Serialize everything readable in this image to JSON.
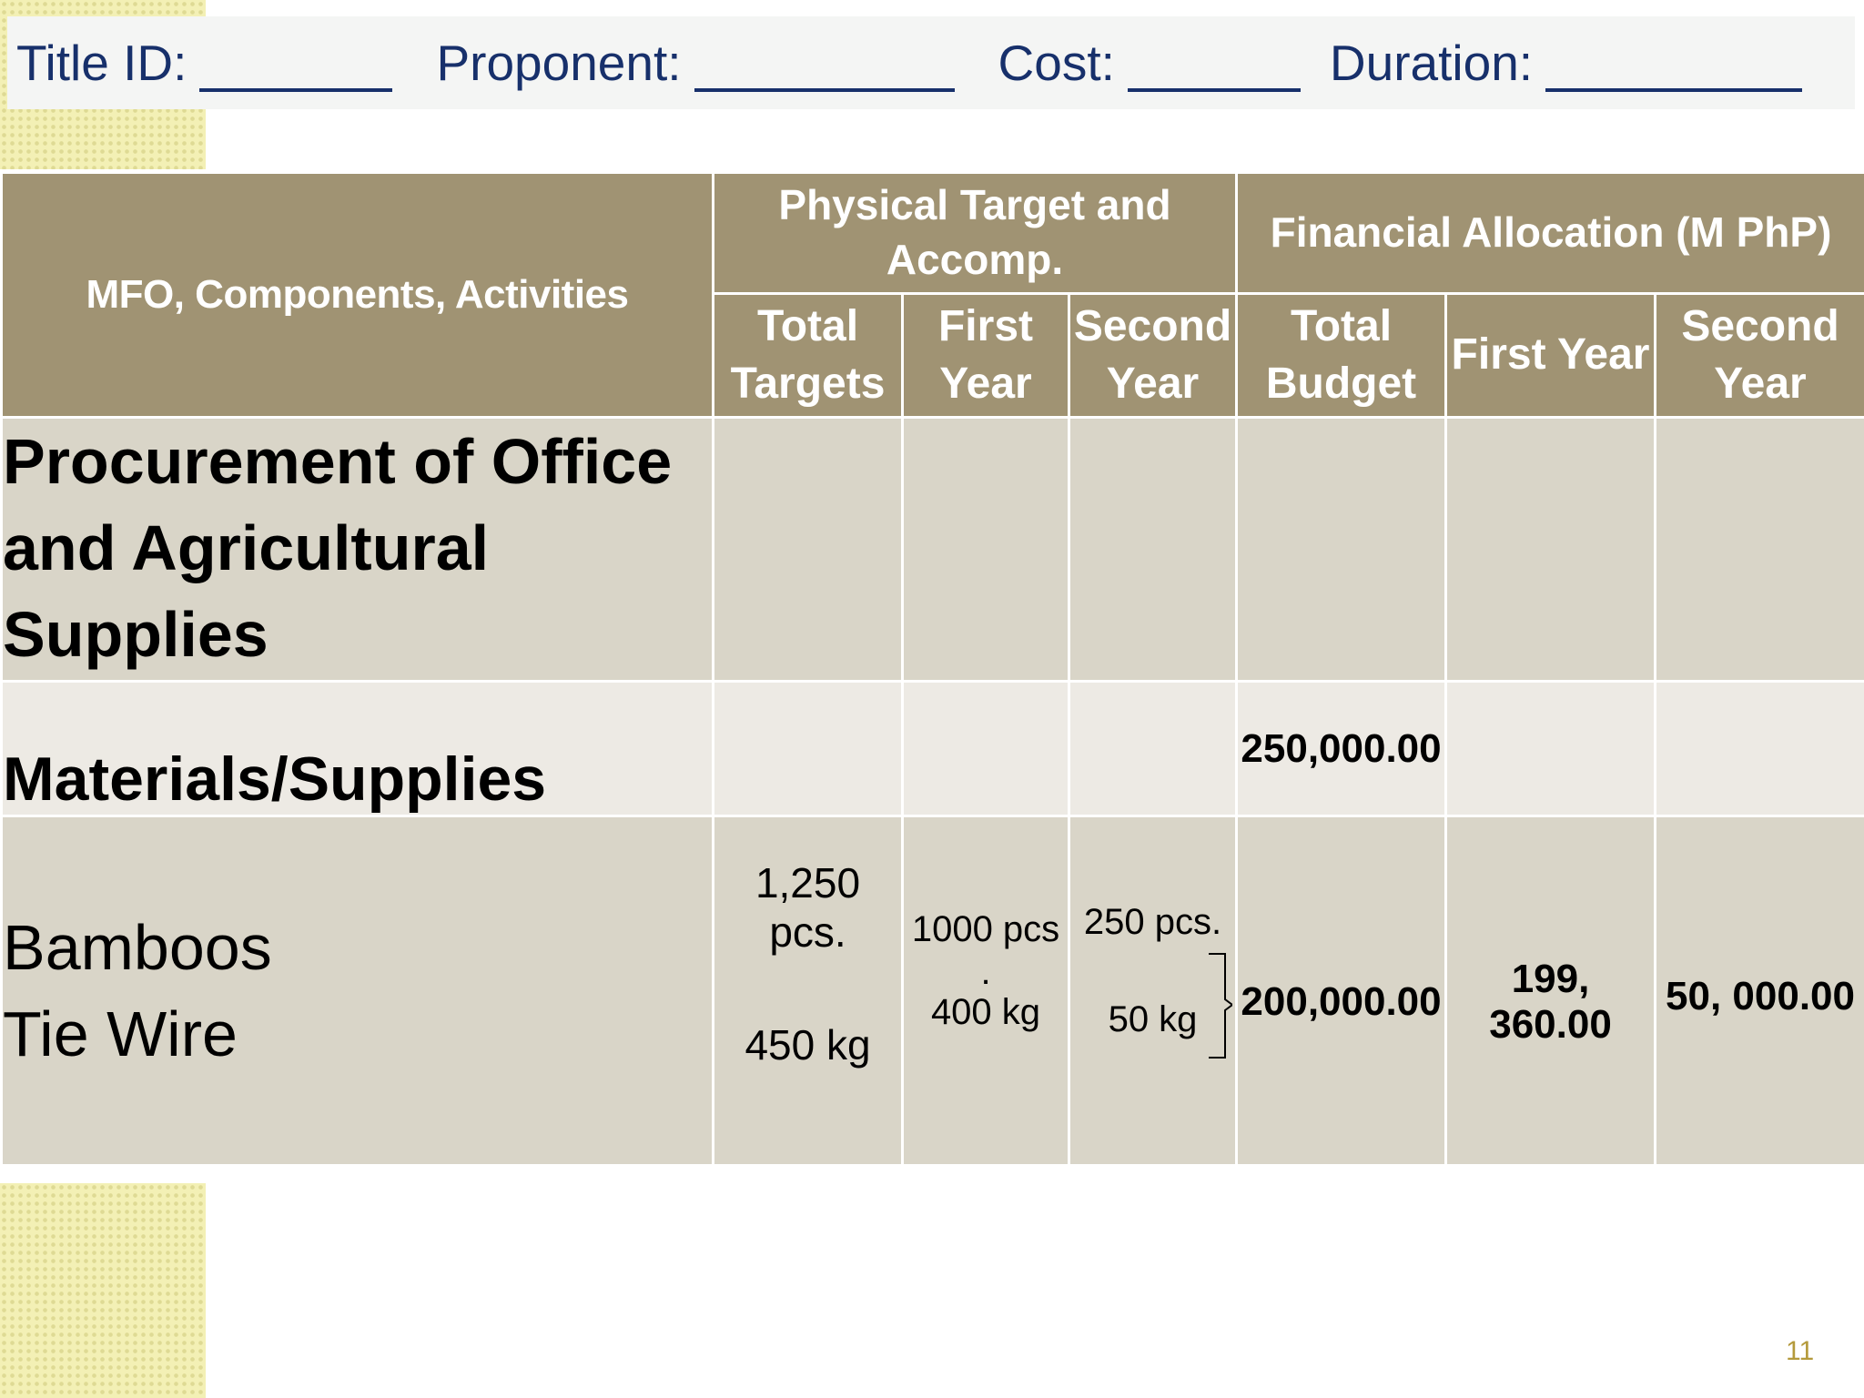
{
  "header": {
    "title_id_label": "Title ID:",
    "proponent_label": "Proponent:",
    "cost_label": "Cost:",
    "duration_label": "Duration:"
  },
  "table": {
    "col_main": "MFO, Components, Activities",
    "group_physical": "Physical Target and Accomp.",
    "group_financial": "Financial Allocation (M PhP)",
    "sub_total_targets": "Total Targets",
    "sub_first_year_1": "First Year",
    "sub_second_year_1": "Second Year",
    "sub_total_budget": "Total Budget",
    "sub_first_year_2": "First Year",
    "sub_second_year_2": "Second Year",
    "rows": {
      "procurement": {
        "label": "Procurement  of Office and Agricultural Supplies"
      },
      "materials": {
        "label": "Materials/Supplies",
        "total_budget": "250,000.00"
      },
      "items": {
        "label_1": "Bamboos",
        "label_2": "Tie Wire",
        "total_targets_1": "1,250 pcs.",
        "total_targets_2": "450 kg",
        "first_year_1": "1000 pcs",
        "first_year_dot": ".",
        "first_year_2": "400 kg",
        "second_year_1": "250 pcs.",
        "second_year_2": "50 kg",
        "total_budget": "200,000.00",
        "first_year_budget": "199, 360.00",
        "second_year_budget": "50, 000.00"
      }
    }
  },
  "page_number": "11"
}
